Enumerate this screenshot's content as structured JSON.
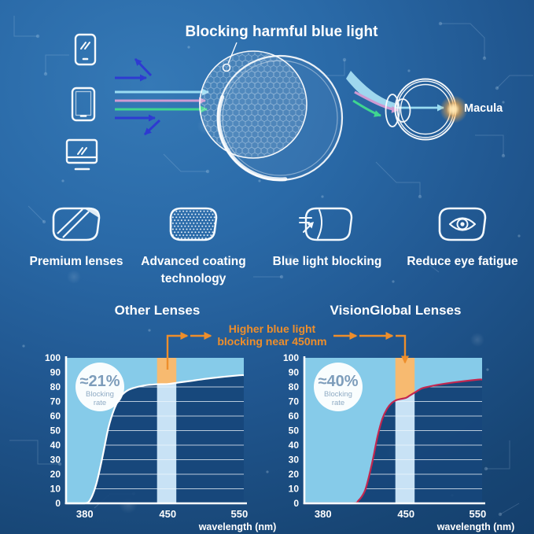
{
  "colors": {
    "background_top": "#3579b6",
    "background_bottom": "#123a66",
    "accent_orange": "#ee8e2b",
    "cyan_fill": "#86cbe9",
    "pale_band": "#c8e2f5",
    "band_highlight_orange": "#f7ba70",
    "curve_red": "#c32750",
    "ray_cyan": "#9adcf2",
    "ray_pink": "#cf9ad2",
    "ray_green": "#3fd68f",
    "reflect_arrow_blue": "#2e36d4",
    "plot_background": "#17477b"
  },
  "header": {
    "title": "Blocking harmful blue light",
    "macula_label": "Macula"
  },
  "features": [
    {
      "icon": "premium-lens-icon",
      "label": "Premium lenses"
    },
    {
      "icon": "advanced-coating-icon",
      "label": "Advanced coating technology"
    },
    {
      "icon": "blue-light-blocking-icon",
      "label": "Blue light blocking"
    },
    {
      "icon": "reduce-eye-fatigue-icon",
      "label": "Reduce eye fatigue"
    }
  ],
  "annotation": {
    "line1": "Higher blue light",
    "line2": "blocking near 450nm"
  },
  "chart_data": [
    {
      "type": "area",
      "title": "Other Lenses",
      "badge": {
        "value": "≈21%",
        "line1": "Blocking",
        "line2": "rate"
      },
      "xlabel": "wavelength (nm)",
      "x_ticks": [
        380,
        450,
        550
      ],
      "y_ticks": [
        0,
        10,
        20,
        30,
        40,
        50,
        60,
        70,
        80,
        90,
        100
      ],
      "ylim": [
        0,
        100
      ],
      "xlim": [
        380,
        550
      ],
      "highlight_band_nm": [
        441,
        462
      ],
      "curve_color": "#ffffff",
      "curve": [
        [
          380,
          0
        ],
        [
          385,
          3
        ],
        [
          390,
          14
        ],
        [
          395,
          32
        ],
        [
          400,
          52
        ],
        [
          405,
          65
        ],
        [
          410,
          73
        ],
        [
          415,
          77
        ],
        [
          420,
          79
        ],
        [
          430,
          81
        ],
        [
          440,
          81.8
        ],
        [
          450,
          82
        ],
        [
          465,
          83
        ],
        [
          480,
          84
        ],
        [
          510,
          86
        ],
        [
          550,
          88
        ]
      ]
    },
    {
      "type": "area",
      "title": "VisionGlobal Lenses",
      "badge": {
        "value": "≈40%",
        "line1": "Blocking",
        "line2": "rate"
      },
      "xlabel": "wavelength (nm)",
      "x_ticks": [
        380,
        450,
        550
      ],
      "y_ticks": [
        0,
        10,
        20,
        30,
        40,
        50,
        60,
        70,
        80,
        90,
        100
      ],
      "ylim": [
        0,
        100
      ],
      "xlim": [
        380,
        550
      ],
      "highlight_band_nm": [
        441,
        462
      ],
      "curve_color": "#c32750",
      "curve": [
        [
          380,
          0
        ],
        [
          405,
          0
        ],
        [
          410,
          2
        ],
        [
          415,
          8
        ],
        [
          418,
          16
        ],
        [
          422,
          30
        ],
        [
          426,
          46
        ],
        [
          430,
          58
        ],
        [
          434,
          65
        ],
        [
          438,
          69
        ],
        [
          442,
          71
        ],
        [
          446,
          71.8
        ],
        [
          450,
          72.5
        ],
        [
          455,
          74
        ],
        [
          460,
          75.5
        ],
        [
          465,
          77
        ],
        [
          472,
          79
        ],
        [
          480,
          80
        ],
        [
          495,
          81.5
        ],
        [
          515,
          83
        ],
        [
          550,
          85
        ]
      ]
    }
  ]
}
